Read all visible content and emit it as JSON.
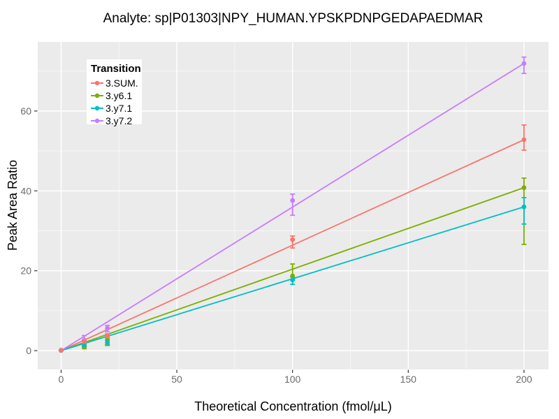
{
  "chart_data": {
    "type": "line",
    "title": "Analyte: sp|P01303|NPY_HUMAN.YPSKPDNPGEDAPAEDMAR",
    "xlabel": "Theoretical Concentration (fmol/μL)",
    "ylabel": "Peak Area Ratio",
    "xlim": [
      -10.1,
      210.6
    ],
    "ylim": [
      -4.7,
      77.3
    ],
    "x_ticks": [
      0,
      50,
      100,
      150,
      200
    ],
    "y_ticks": [
      0,
      20,
      40,
      60
    ],
    "x_minor_gridlines": [
      25,
      75,
      125,
      175
    ],
    "y_minor_gridlines": [
      10,
      30,
      50,
      70
    ],
    "grid": true,
    "legend": {
      "title": "Transition",
      "position": "inside top-left"
    },
    "x": [
      0,
      10,
      20,
      100,
      200
    ],
    "point_style": "filled circles with vertical error bars (capped); straight calibration line from origin to the 200 fmol/μL point of each series",
    "series": [
      {
        "name": "3.SUM.",
        "color": "#F8766D",
        "y": [
          0.1,
          2.3,
          3.7,
          27.8,
          52.8
        ],
        "y_lo": [
          0.0,
          1.9,
          3.2,
          25.7,
          50.2
        ],
        "y_hi": [
          0.2,
          2.7,
          4.2,
          28.7,
          56.5
        ]
      },
      {
        "name": "3.y6.1",
        "color": "#7CAE00",
        "y": [
          0.05,
          0.9,
          2.6,
          18.7,
          40.8
        ],
        "y_lo": [
          0.0,
          0.5,
          1.6,
          17.8,
          26.6
        ],
        "y_hi": [
          0.1,
          1.3,
          3.3,
          21.7,
          43.2
        ]
      },
      {
        "name": "3.y7.1",
        "color": "#00BFC4",
        "y": [
          0.05,
          1.4,
          2.1,
          17.7,
          36.0
        ],
        "y_lo": [
          0.0,
          1.0,
          1.3,
          16.6,
          31.7
        ],
        "y_hi": [
          0.1,
          1.8,
          2.8,
          18.4,
          38.3
        ]
      },
      {
        "name": "3.y7.2",
        "color": "#C77CFF",
        "y": [
          0.1,
          2.6,
          5.6,
          37.6,
          71.9
        ],
        "y_lo": [
          0.0,
          1.5,
          4.7,
          33.9,
          69.4
        ],
        "y_hi": [
          0.2,
          3.8,
          6.3,
          39.2,
          73.5
        ]
      }
    ]
  },
  "style": {
    "page_background": "#FFFFFF",
    "panel_background": "#EBEBEB",
    "grid_major_color": "#FFFFFF",
    "grid_minor_color": "#F7F7F7",
    "tick_label_color": "#6B6B6B",
    "tick_mark_color": "#333333",
    "text_color": "#000000",
    "legend_background": "#FFFFFF"
  }
}
